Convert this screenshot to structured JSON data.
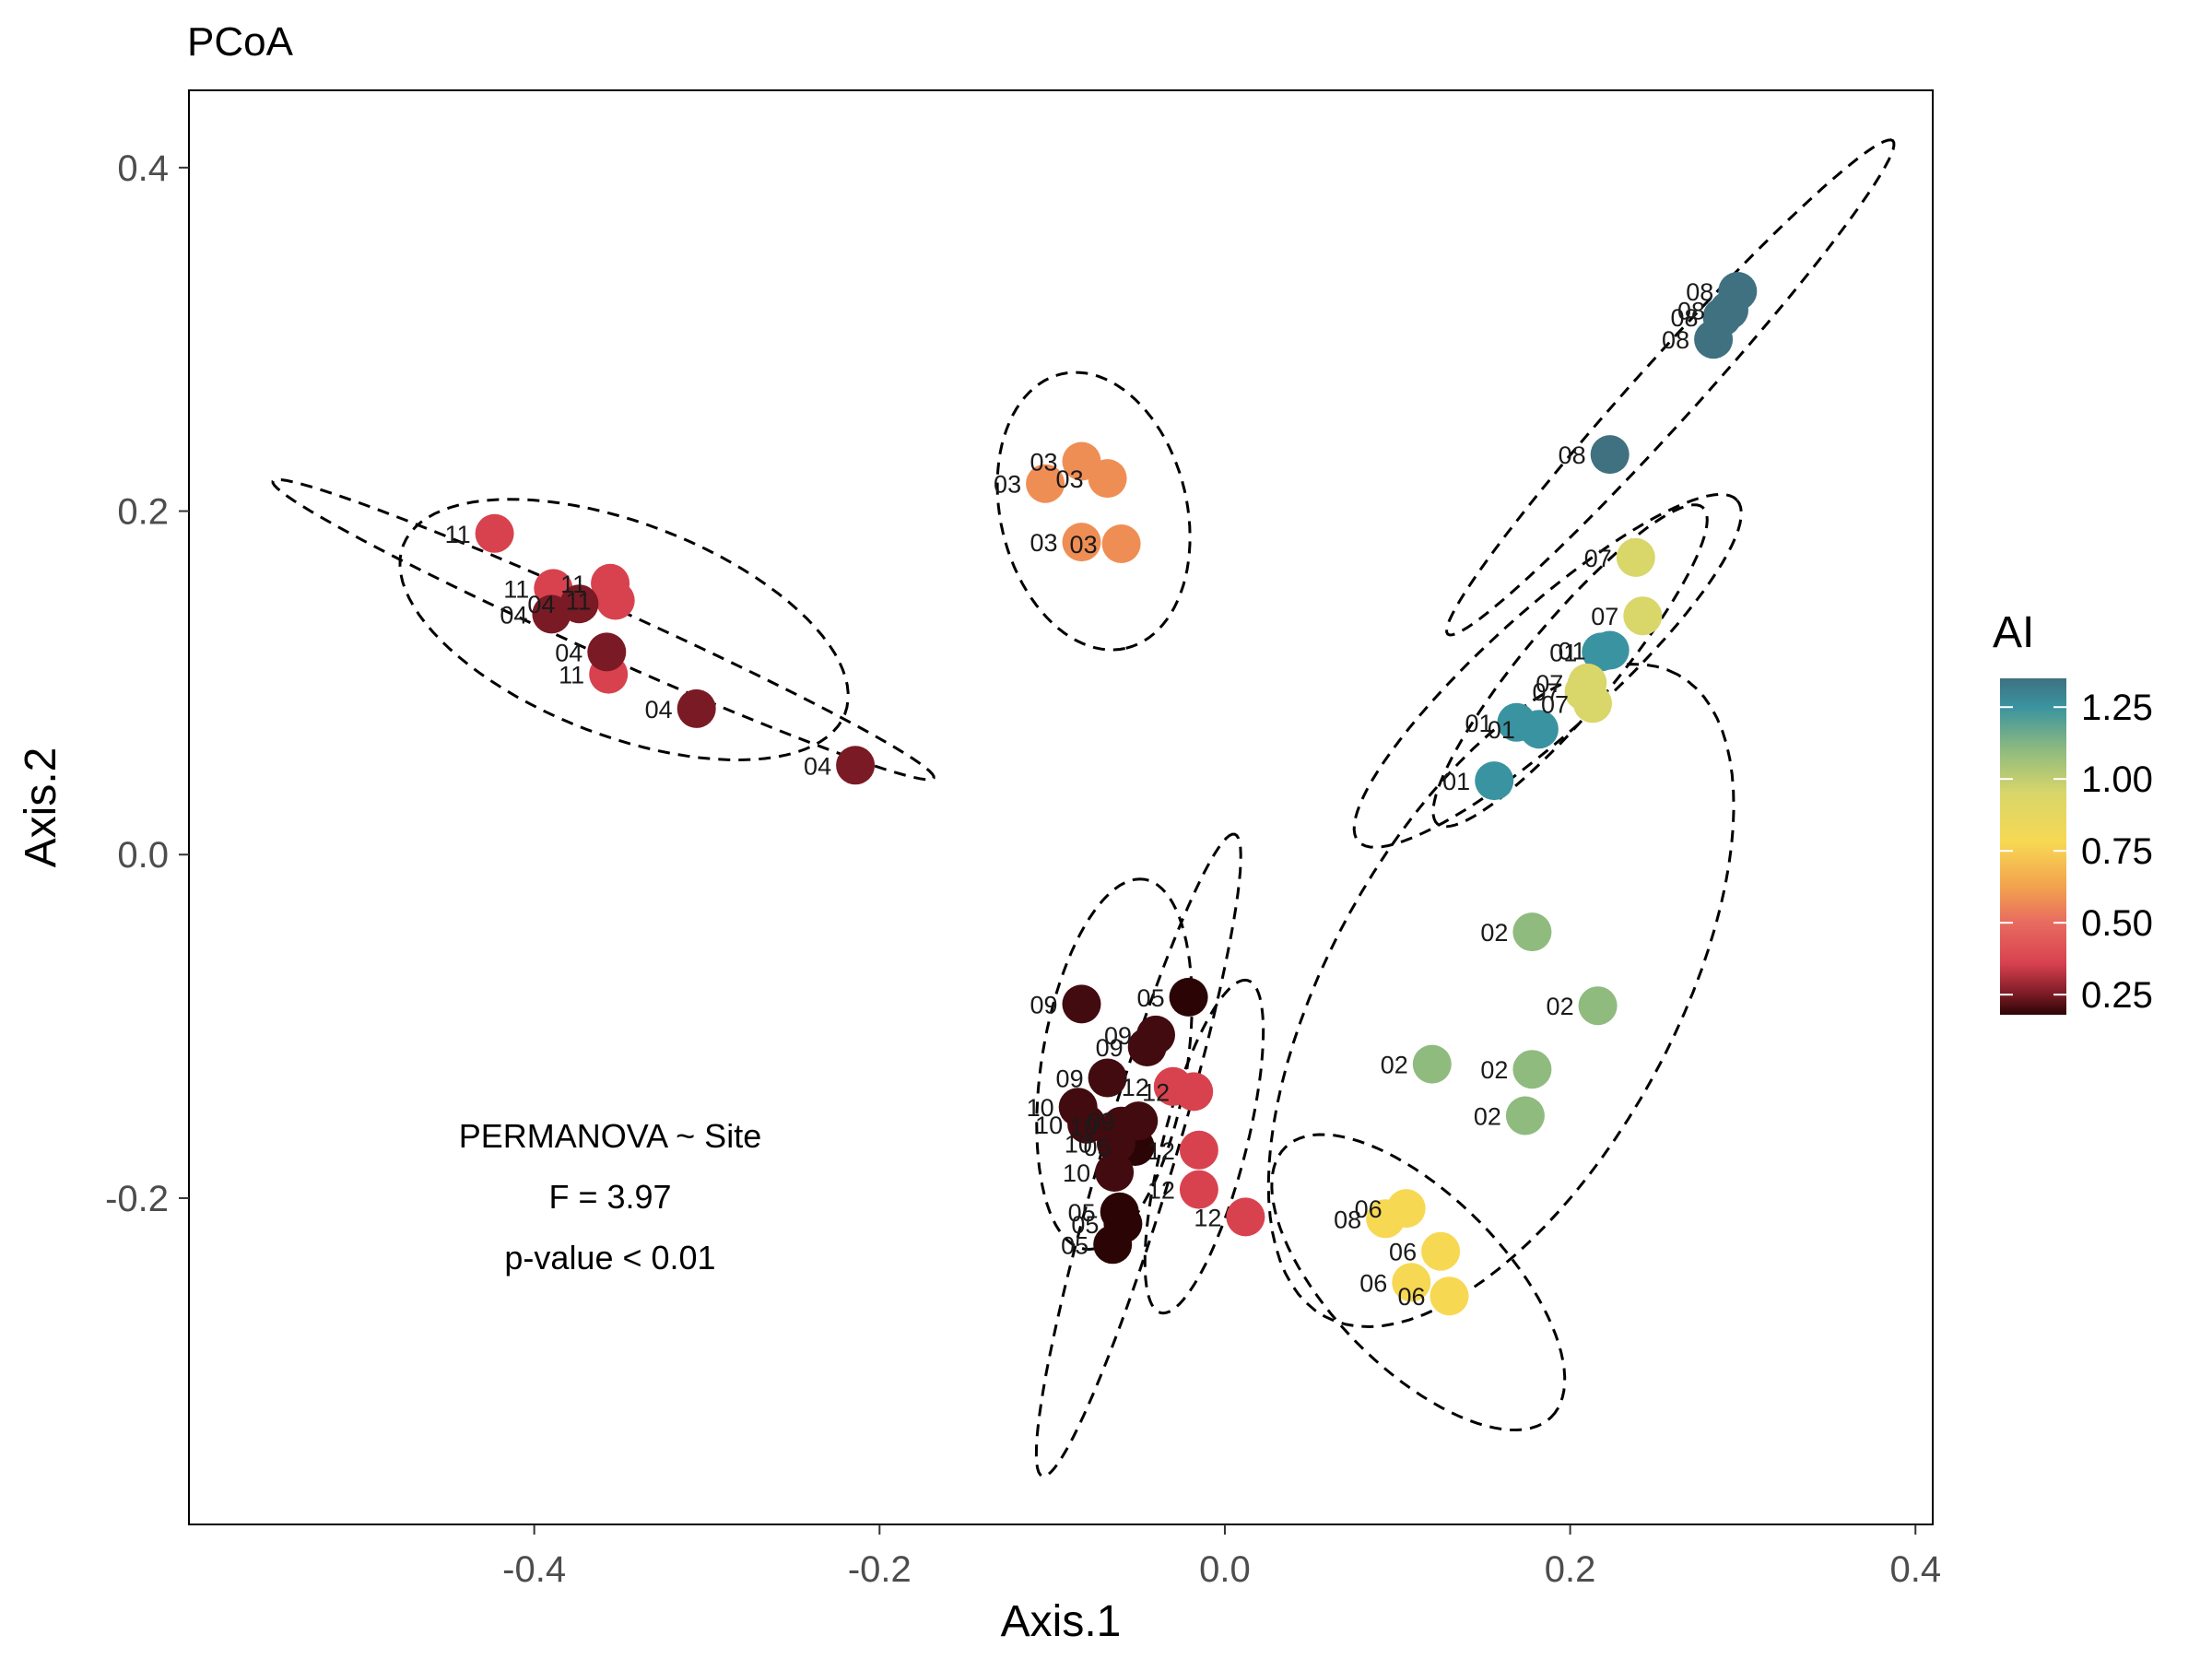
{
  "chart_data": {
    "type": "scatter",
    "title": "PCoA",
    "xlabel": "Axis.1",
    "ylabel": "Axis.2",
    "xlim": [
      -0.6,
      0.41
    ],
    "ylim": [
      -0.39,
      0.445
    ],
    "x_ticks": [
      -0.4,
      -0.2,
      0.0,
      0.2,
      0.4
    ],
    "x_tick_labels": [
      "-0.4",
      "-0.2",
      "0.0",
      "0.2",
      "0.4"
    ],
    "y_ticks": [
      -0.2,
      0.0,
      0.2,
      0.4
    ],
    "y_tick_labels": [
      "-0.2",
      "0.0",
      "0.2",
      "0.4"
    ],
    "grid": false,
    "legend": {
      "title": "AI",
      "placement": "right",
      "range": [
        0.18,
        1.35
      ],
      "breaks": [
        0.25,
        0.5,
        0.75,
        1.0,
        1.25
      ],
      "break_labels": [
        "0.25",
        "0.50",
        "0.75",
        "1.00",
        "1.25"
      ],
      "gradient": [
        {
          "v": 0.18,
          "color": "#2b0506"
        },
        {
          "v": 0.25,
          "color": "#7a1a24"
        },
        {
          "v": 0.36,
          "color": "#d8424f"
        },
        {
          "v": 0.5,
          "color": "#e86b60"
        },
        {
          "v": 0.62,
          "color": "#f2a04e"
        },
        {
          "v": 0.78,
          "color": "#f7d853"
        },
        {
          "v": 0.95,
          "color": "#d9d66a"
        },
        {
          "v": 1.1,
          "color": "#8fbb7f"
        },
        {
          "v": 1.25,
          "color": "#3a93a0"
        },
        {
          "v": 1.35,
          "color": "#3f7180"
        }
      ]
    },
    "annotations": [
      "PERMANOVA ~ Site",
      "F = 3.97",
      "p-value < 0.01"
    ],
    "points": [
      {
        "label": "08",
        "x": 0.297,
        "y": 0.328,
        "ai": 1.35
      },
      {
        "label": "08",
        "x": 0.292,
        "y": 0.317,
        "ai": 1.35
      },
      {
        "label": "08",
        "x": 0.288,
        "y": 0.313,
        "ai": 1.35
      },
      {
        "label": "08",
        "x": 0.283,
        "y": 0.3,
        "ai": 1.35
      },
      {
        "label": "08",
        "x": 0.223,
        "y": 0.233,
        "ai": 1.35
      },
      {
        "label": "01",
        "x": 0.223,
        "y": 0.119,
        "ai": 1.25
      },
      {
        "label": "01",
        "x": 0.218,
        "y": 0.118,
        "ai": 1.25
      },
      {
        "label": "01",
        "x": 0.182,
        "y": 0.073,
        "ai": 1.25
      },
      {
        "label": "01",
        "x": 0.169,
        "y": 0.077,
        "ai": 1.25
      },
      {
        "label": "01",
        "x": 0.156,
        "y": 0.043,
        "ai": 1.25
      },
      {
        "label": "07",
        "x": 0.238,
        "y": 0.173,
        "ai": 0.95
      },
      {
        "label": "07",
        "x": 0.242,
        "y": 0.139,
        "ai": 0.95
      },
      {
        "label": "07",
        "x": 0.21,
        "y": 0.1,
        "ai": 0.95
      },
      {
        "label": "07",
        "x": 0.208,
        "y": 0.095,
        "ai": 0.95
      },
      {
        "label": "07",
        "x": 0.213,
        "y": 0.088,
        "ai": 0.95
      },
      {
        "label": "02",
        "x": 0.178,
        "y": -0.045,
        "ai": 1.1
      },
      {
        "label": "02",
        "x": 0.216,
        "y": -0.088,
        "ai": 1.1
      },
      {
        "label": "02",
        "x": 0.12,
        "y": -0.122,
        "ai": 1.1
      },
      {
        "label": "02",
        "x": 0.178,
        "y": -0.125,
        "ai": 1.1
      },
      {
        "label": "02",
        "x": 0.174,
        "y": -0.152,
        "ai": 1.1
      },
      {
        "label": "06",
        "x": 0.105,
        "y": -0.206,
        "ai": 0.78
      },
      {
        "label": "08",
        "x": 0.093,
        "y": -0.212,
        "ai": 0.78
      },
      {
        "label": "06",
        "x": 0.125,
        "y": -0.231,
        "ai": 0.78
      },
      {
        "label": "06",
        "x": 0.108,
        "y": -0.249,
        "ai": 0.78
      },
      {
        "label": "06",
        "x": 0.13,
        "y": -0.257,
        "ai": 0.78
      },
      {
        "label": "03",
        "x": -0.083,
        "y": 0.229,
        "ai": 0.58
      },
      {
        "label": "03",
        "x": -0.068,
        "y": 0.219,
        "ai": 0.58
      },
      {
        "label": "03",
        "x": -0.104,
        "y": 0.216,
        "ai": 0.58
      },
      {
        "label": "03",
        "x": -0.083,
        "y": 0.182,
        "ai": 0.58
      },
      {
        "label": "03",
        "x": -0.06,
        "y": 0.181,
        "ai": 0.58
      },
      {
        "label": "11",
        "x": -0.423,
        "y": 0.187,
        "ai": 0.36
      },
      {
        "label": "11",
        "x": -0.356,
        "y": 0.158,
        "ai": 0.36
      },
      {
        "label": "11",
        "x": -0.389,
        "y": 0.155,
        "ai": 0.36
      },
      {
        "label": "11",
        "x": -0.353,
        "y": 0.148,
        "ai": 0.36
      },
      {
        "label": "11",
        "x": -0.357,
        "y": 0.105,
        "ai": 0.36
      },
      {
        "label": "04",
        "x": -0.374,
        "y": 0.146,
        "ai": 0.25
      },
      {
        "label": "04",
        "x": -0.39,
        "y": 0.14,
        "ai": 0.25
      },
      {
        "label": "04",
        "x": -0.358,
        "y": 0.118,
        "ai": 0.25
      },
      {
        "label": "04",
        "x": -0.306,
        "y": 0.085,
        "ai": 0.25
      },
      {
        "label": "04",
        "x": -0.214,
        "y": 0.052,
        "ai": 0.25
      },
      {
        "label": "12",
        "x": -0.018,
        "y": -0.138,
        "ai": 0.36
      },
      {
        "label": "12",
        "x": -0.03,
        "y": -0.135,
        "ai": 0.36
      },
      {
        "label": "12",
        "x": -0.015,
        "y": -0.172,
        "ai": 0.36
      },
      {
        "label": "12",
        "x": -0.015,
        "y": -0.195,
        "ai": 0.36
      },
      {
        "label": "12",
        "x": 0.012,
        "y": -0.211,
        "ai": 0.36
      },
      {
        "label": "05",
        "x": -0.021,
        "y": -0.083,
        "ai": 0.18
      },
      {
        "label": "05",
        "x": -0.052,
        "y": -0.17,
        "ai": 0.18
      },
      {
        "label": "05",
        "x": -0.061,
        "y": -0.208,
        "ai": 0.18
      },
      {
        "label": "05",
        "x": -0.059,
        "y": -0.215,
        "ai": 0.18
      },
      {
        "label": "05",
        "x": -0.065,
        "y": -0.227,
        "ai": 0.18
      },
      {
        "label": "09",
        "x": -0.083,
        "y": -0.087,
        "ai": 0.2
      },
      {
        "label": "09",
        "x": -0.04,
        "y": -0.105,
        "ai": 0.2
      },
      {
        "label": "09",
        "x": -0.045,
        "y": -0.112,
        "ai": 0.2
      },
      {
        "label": "09",
        "x": -0.068,
        "y": -0.13,
        "ai": 0.2
      },
      {
        "label": "09",
        "x": -0.05,
        "y": -0.155,
        "ai": 0.2
      },
      {
        "label": "10",
        "x": -0.085,
        "y": -0.147,
        "ai": 0.2
      },
      {
        "label": "10",
        "x": -0.08,
        "y": -0.157,
        "ai": 0.2
      },
      {
        "label": "10",
        "x": -0.06,
        "y": -0.158,
        "ai": 0.2
      },
      {
        "label": "10",
        "x": -0.063,
        "y": -0.168,
        "ai": 0.2
      },
      {
        "label": "10",
        "x": -0.064,
        "y": -0.185,
        "ai": 0.2
      }
    ],
    "ellipses": [
      {
        "group": "08",
        "cx": 0.258,
        "cy": 0.272,
        "rx": 0.193,
        "ry": 0.018,
        "angle": 48.1
      },
      {
        "group": "07",
        "cx": 0.2,
        "cy": 0.11,
        "rx": 0.12,
        "ry": 0.026,
        "angle": 50.2
      },
      {
        "group": "01",
        "cx": 0.187,
        "cy": 0.107,
        "rx": 0.148,
        "ry": 0.035,
        "angle": 42.2
      },
      {
        "group": "02",
        "cx": 0.16,
        "cy": -0.082,
        "rx": 0.213,
        "ry": 0.1,
        "angle": 61.3
      },
      {
        "group": "06",
        "cx": 0.112,
        "cy": -0.249,
        "rx": 0.11,
        "ry": 0.05,
        "angle": -45.6
      },
      {
        "group": "03",
        "cx": -0.076,
        "cy": 0.2,
        "rx": 0.082,
        "ry": 0.054,
        "angle": -76.8
      },
      {
        "group": "11",
        "cx": -0.36,
        "cy": 0.131,
        "rx": 0.21,
        "ry": 0.014,
        "angle": -24.3
      },
      {
        "group": "04",
        "cx": -0.348,
        "cy": 0.131,
        "rx": 0.137,
        "ry": 0.062,
        "angle": -21.0
      },
      {
        "group": "09",
        "cx": -0.064,
        "cy": -0.122,
        "rx": 0.109,
        "ry": 0.042,
        "angle": 80.8
      },
      {
        "group": "10",
        "cx": -0.05,
        "cy": -0.175,
        "rx": 0.195,
        "ry": 0.021,
        "angle": 73.4
      },
      {
        "group": "12",
        "cx": -0.012,
        "cy": -0.17,
        "rx": 0.1,
        "ry": 0.024,
        "angle": 75.4
      }
    ]
  }
}
